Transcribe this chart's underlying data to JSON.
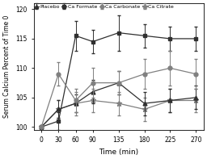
{
  "time": [
    0,
    30,
    60,
    90,
    135,
    180,
    225,
    270
  ],
  "placebo": [
    100,
    103,
    104,
    106,
    107.5,
    104,
    104.5,
    105
  ],
  "placebo_err": [
    0,
    1.5,
    1.5,
    2,
    2,
    2,
    2,
    2
  ],
  "ca_formate": [
    100,
    109,
    104.5,
    107.5,
    107.5,
    109,
    110,
    109
  ],
  "ca_formate_err": [
    0,
    2,
    2,
    2.5,
    2,
    2.5,
    3,
    2.5
  ],
  "ca_carbonate": [
    100,
    101,
    115.5,
    114.5,
    116,
    115.5,
    115,
    115
  ],
  "ca_carbonate_err": [
    0,
    1.5,
    2.5,
    2,
    3,
    2,
    2,
    2
  ],
  "ca_citrate": [
    100,
    103,
    104,
    104.5,
    104,
    103,
    104.5,
    104.5
  ],
  "ca_citrate_err": [
    0,
    1.5,
    2,
    2,
    2,
    2,
    2,
    2
  ],
  "ylabel": "Serum Calcium Percent of Time 0",
  "xlabel": "Time (min)",
  "ylim": [
    99.5,
    121
  ],
  "yticks": [
    100,
    105,
    110,
    115,
    120
  ],
  "xticks": [
    0,
    30,
    60,
    90,
    135,
    180,
    225,
    270
  ],
  "line_color": "#808080",
  "dark_color": "#303030",
  "bg_color": "#ffffff",
  "fig_color": "#ffffff"
}
